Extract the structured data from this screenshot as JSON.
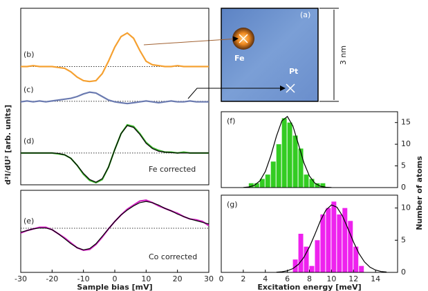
{
  "image_panel": {
    "label": "(a)",
    "atom_1": "Fe",
    "atom_2": "Pt",
    "scale": "3 nm"
  },
  "chart_data": [
    {
      "type": "line",
      "y_label": "d²I/dU² [arb. units]",
      "xlim": [
        -30,
        30
      ],
      "ylim": [
        0,
        100
      ],
      "x": [
        -30,
        -28,
        -26,
        -24,
        -22,
        -20,
        -18,
        -16,
        -14,
        -12,
        -10,
        -8,
        -6,
        -4,
        -2,
        0,
        2,
        4,
        6,
        8,
        10,
        12,
        14,
        16,
        18,
        20,
        22,
        24,
        26,
        28,
        30
      ],
      "reference_lines": [
        67,
        47.3,
        18
      ],
      "series": [
        {
          "name": "(b)",
          "color": "#f5a030",
          "values": [
            67,
            67,
            67.5,
            67,
            67,
            67,
            66.5,
            66,
            64,
            61,
            59,
            58.5,
            59,
            63,
            70,
            78,
            84,
            86,
            83,
            76,
            70,
            68,
            67.5,
            67,
            67,
            67.5,
            67,
            67,
            67,
            67,
            67
          ]
        },
        {
          "name": "(c)",
          "color": "#6a7ab0",
          "values": [
            47,
            47.5,
            47,
            47.5,
            47,
            47.5,
            48,
            48.5,
            49,
            50,
            51.5,
            52.5,
            52,
            50,
            48,
            47,
            46.5,
            46,
            46.5,
            47,
            47.5,
            47,
            46.5,
            47,
            47.5,
            47,
            47,
            47.5,
            47,
            47,
            47
          ]
        },
        {
          "name": "(d)",
          "color": "#3ab02a",
          "values": [
            18,
            18,
            18,
            18,
            18,
            18,
            17.5,
            17,
            15,
            11,
            6,
            2.5,
            1.2,
            3,
            10,
            20,
            29,
            34,
            33,
            29,
            24,
            21,
            19.5,
            18.5,
            18.5,
            18,
            18.5,
            18,
            18,
            18,
            18
          ]
        },
        {
          "color": "#000000",
          "values": [
            18,
            18,
            18,
            18,
            18,
            18,
            17.8,
            17,
            15,
            11,
            6.5,
            3,
            1.5,
            3.5,
            10,
            20,
            29,
            33.5,
            32.5,
            28.5,
            23.5,
            20.5,
            19,
            18.5,
            18.2,
            18,
            18,
            18,
            18,
            18,
            18
          ]
        }
      ],
      "annotations": [
        "Fe corrected"
      ]
    },
    {
      "type": "line",
      "x_label": "Sample bias [mV]",
      "xlim": [
        -30,
        30
      ],
      "ylim": [
        0,
        100
      ],
      "xticks": [
        -30,
        -20,
        -10,
        0,
        10,
        20,
        30
      ],
      "x": [
        -30,
        -28,
        -26,
        -24,
        -22,
        -20,
        -18,
        -16,
        -14,
        -12,
        -10,
        -8,
        -6,
        -4,
        -2,
        0,
        2,
        4,
        6,
        8,
        10,
        12,
        14,
        16,
        18,
        20,
        22,
        24,
        26,
        28,
        30
      ],
      "reference_lines": [
        53.8
      ],
      "series": [
        {
          "name": "(e)",
          "color": "#d020c0",
          "values": [
            48,
            51,
            53,
            55,
            55,
            52,
            47,
            42,
            36,
            30,
            27,
            28,
            34,
            43,
            53,
            62,
            70,
            77,
            82,
            87,
            88,
            85,
            81,
            78,
            75,
            72,
            68,
            65,
            64,
            62,
            57
          ]
        },
        {
          "color": "#000000",
          "values": [
            49,
            51,
            53,
            54,
            54,
            52,
            47,
            41,
            35,
            30,
            27.5,
            29,
            35,
            44,
            53,
            62,
            70,
            76,
            81,
            85,
            86.5,
            85,
            82,
            78,
            75,
            71,
            68,
            65,
            63,
            61,
            59
          ]
        }
      ],
      "annotations": [
        "Co corrected"
      ]
    },
    {
      "type": "histogram",
      "label": "(f)",
      "y_label": "Number of atoms",
      "color": "#33cc22",
      "xlim": [
        0,
        16
      ],
      "ylim": [
        0,
        17.5
      ],
      "yticks": [
        0,
        5,
        10,
        15
      ],
      "bins": [
        2.5,
        3,
        3.5,
        4,
        4.5,
        5,
        5.5,
        6,
        6.5,
        7,
        7.5,
        8,
        8.5,
        9,
        9.5
      ],
      "values": [
        1,
        1,
        2,
        3,
        6,
        10,
        16,
        15,
        12,
        9,
        3,
        2,
        1,
        1
      ],
      "fit": {
        "x": [
          2,
          2.5,
          3,
          3.5,
          4,
          4.5,
          5,
          5.5,
          6,
          6.5,
          7,
          7.5,
          8,
          8.5,
          9,
          9.5,
          10
        ],
        "values": [
          0.03,
          0.14,
          0.51,
          1.53,
          3.72,
          7.34,
          11.8,
          15.4,
          16.4,
          14.2,
          10.0,
          5.73,
          2.67,
          1.01,
          0.31,
          0.08,
          0.02
        ]
      }
    },
    {
      "type": "histogram",
      "label": "(g)",
      "x_label": "Excitation energy [meV]",
      "color": "#ee22ee",
      "xlim": [
        0,
        16
      ],
      "ylim": [
        0,
        12
      ],
      "yticks": [
        0,
        5,
        10
      ],
      "xticks": [
        0,
        2,
        4,
        6,
        8,
        10,
        12,
        14
      ],
      "bins": [
        6.5,
        7,
        7.5,
        8,
        8.5,
        9,
        9.5,
        10,
        10.5,
        11,
        11.5,
        12,
        12.5,
        13
      ],
      "values": [
        2,
        6,
        4,
        1,
        5,
        9,
        10,
        11,
        9,
        10,
        8,
        4,
        1
      ],
      "fit": {
        "x": [
          5,
          5.5,
          6,
          6.5,
          7,
          7.5,
          8,
          8.5,
          9,
          9.5,
          10,
          10.5,
          11,
          11.5,
          12,
          12.5,
          13,
          13.5,
          14,
          14.5,
          15
        ],
        "values": [
          0.03,
          0.1,
          0.25,
          0.59,
          1.24,
          2.34,
          3.94,
          5.94,
          8.02,
          9.69,
          10.48,
          10.13,
          8.77,
          6.79,
          4.71,
          2.92,
          1.62,
          0.8,
          0.36,
          0.14,
          0.05
        ]
      }
    }
  ]
}
